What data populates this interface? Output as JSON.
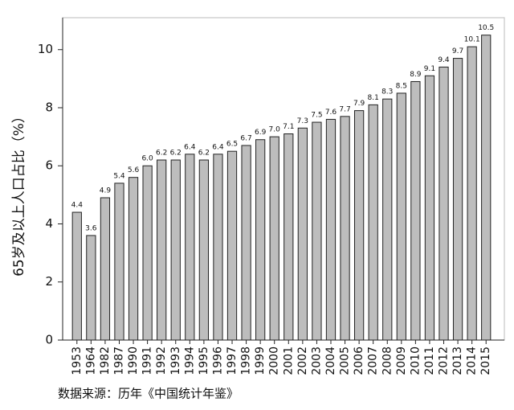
{
  "chart_data": {
    "type": "bar",
    "y_label": "65岁及以上人口占比（%）",
    "source": "数据来源：历年《中国统计年鉴》",
    "categories": [
      "1953",
      "1964",
      "1982",
      "1987",
      "1990",
      "1991",
      "1992",
      "1993",
      "1994",
      "1995",
      "1996",
      "1997",
      "1998",
      "1999",
      "2000",
      "2001",
      "2002",
      "2003",
      "2004",
      "2005",
      "2006",
      "2007",
      "2008",
      "2009",
      "2010",
      "2011",
      "2012",
      "2013",
      "2014",
      "2015"
    ],
    "values": [
      4.4,
      3.6,
      4.9,
      5.4,
      5.6,
      6.0,
      6.2,
      6.2,
      6.4,
      6.2,
      6.4,
      6.5,
      6.7,
      6.9,
      7.0,
      7.1,
      7.3,
      7.5,
      7.6,
      7.7,
      7.9,
      8.1,
      8.3,
      8.5,
      8.9,
      9.1,
      9.4,
      9.7,
      10.1,
      10.5
    ],
    "value_labels": [
      "4.4",
      "3.6",
      "4.9",
      "5.4",
      "5.6",
      "6.0",
      "6.2",
      "6.2",
      "6.4",
      "6.2",
      "6.4",
      "6.5",
      "6.7",
      "6.9",
      "7.0",
      "7.1",
      "7.3",
      "7.5",
      "7.6",
      "7.7",
      "7.9",
      "8.1",
      "8.3",
      "8.5",
      "8.9",
      "9.1",
      "9.4",
      "9.7",
      "10.1",
      "10.5"
    ],
    "color": "#bdbdbd",
    "ylim": [
      0,
      11.1
    ],
    "yticks": [
      0,
      2,
      4,
      6,
      8,
      10
    ],
    "grid": false
  }
}
